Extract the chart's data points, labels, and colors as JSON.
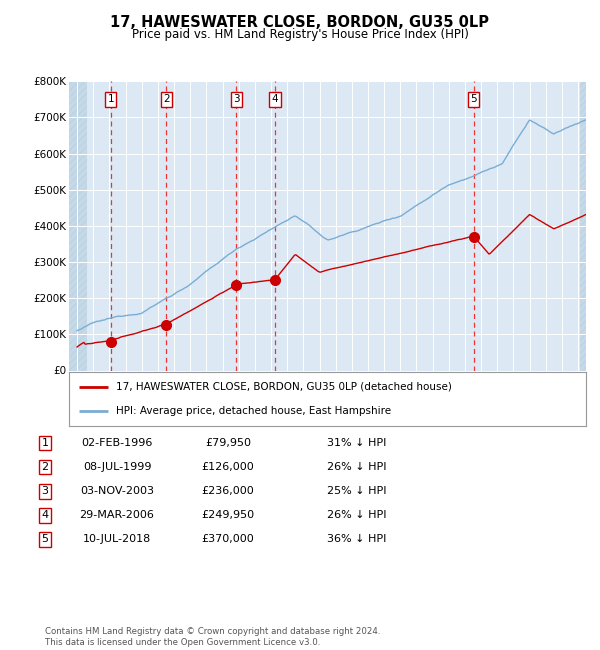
{
  "title": "17, HAWESWATER CLOSE, BORDON, GU35 0LP",
  "subtitle": "Price paid vs. HM Land Registry's House Price Index (HPI)",
  "background_color": "#FFFFFF",
  "plot_bg_color": "#dce9f5",
  "hatch_color": "#b8cfe0",
  "grid_color": "#FFFFFF",
  "x_start_year": 1994,
  "x_end_year": 2025,
  "y_min": 0,
  "y_max": 800000,
  "y_ticks": [
    0,
    100000,
    200000,
    300000,
    400000,
    500000,
    600000,
    700000,
    800000
  ],
  "y_tick_labels": [
    "£0",
    "£100K",
    "£200K",
    "£300K",
    "£400K",
    "£500K",
    "£600K",
    "£700K",
    "£800K"
  ],
  "sale_dates_x": [
    1996.09,
    1999.52,
    2003.84,
    2006.25,
    2018.53
  ],
  "sale_prices_y": [
    79950,
    126000,
    236000,
    249950,
    370000
  ],
  "sale_labels": [
    "1",
    "2",
    "3",
    "4",
    "5"
  ],
  "red_line_color": "#cc0000",
  "blue_line_color": "#7aadd4",
  "sale_marker_color": "#cc0000",
  "dashed_line_color": "#ee3333",
  "legend_label_red": "17, HAWESWATER CLOSE, BORDON, GU35 0LP (detached house)",
  "legend_label_blue": "HPI: Average price, detached house, East Hampshire",
  "table_entries": [
    {
      "num": "1",
      "date": "02-FEB-1996",
      "price": "£79,950",
      "pct": "31% ↓ HPI"
    },
    {
      "num": "2",
      "date": "08-JUL-1999",
      "price": "£126,000",
      "pct": "26% ↓ HPI"
    },
    {
      "num": "3",
      "date": "03-NOV-2003",
      "price": "£236,000",
      "pct": "25% ↓ HPI"
    },
    {
      "num": "4",
      "date": "29-MAR-2006",
      "price": "£249,950",
      "pct": "26% ↓ HPI"
    },
    {
      "num": "5",
      "date": "10-JUL-2018",
      "price": "£370,000",
      "pct": "36% ↓ HPI"
    }
  ],
  "footer": "Contains HM Land Registry data © Crown copyright and database right 2024.\nThis data is licensed under the Open Government Licence v3.0.",
  "label_box_color": "#FFFFFF",
  "label_box_edge": "#cc0000"
}
